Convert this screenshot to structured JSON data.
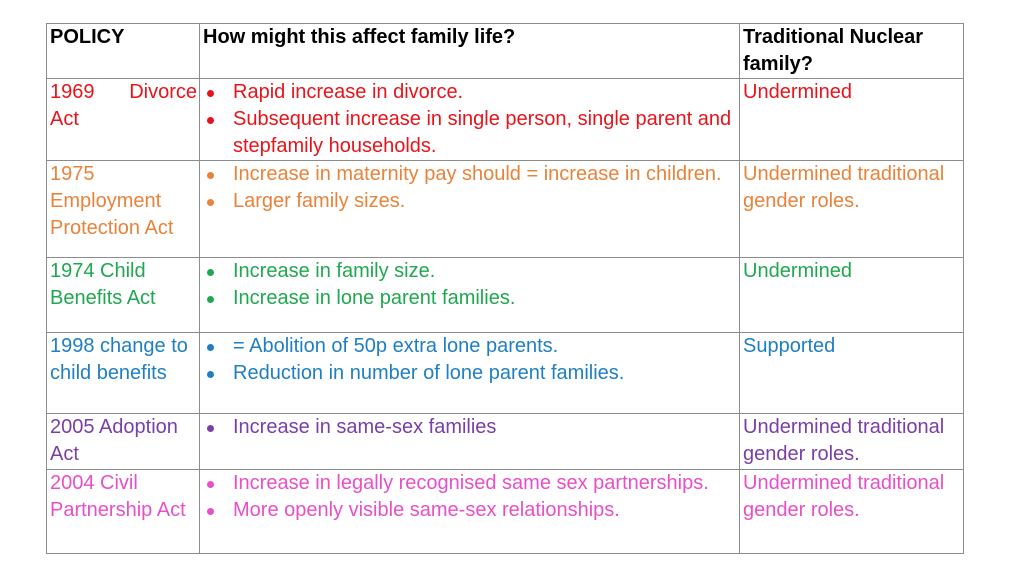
{
  "headers": {
    "policy": "POLICY",
    "effect": "How might this affect family life?",
    "nuclear": "Traditional Nuclear family?"
  },
  "rows": [
    {
      "color": "#e8141b",
      "policy_a": "1969",
      "policy_b": "Divorce",
      "policy_c": "Act",
      "effects": [
        "Rapid increase in divorce.",
        "Subsequent increase in single person, single parent and stepfamily households."
      ],
      "nuclear": "Undermined"
    },
    {
      "color": "#e8833a",
      "policy": "1975 Employment Protection Act",
      "effects": [
        "Increase in maternity pay should = increase in children.",
        "Larger family sizes."
      ],
      "nuclear": "Undermined traditional gender roles."
    },
    {
      "color": "#1fa84f",
      "policy": "1974 Child Benefits Act",
      "effects": [
        "Increase in family size.",
        "Increase in lone parent families."
      ],
      "nuclear": "Undermined"
    },
    {
      "color": "#1f7fc4",
      "policy": "1998 change to child benefits",
      "effects": [
        "= Abolition of 50p extra lone parents.",
        "Reduction in number of lone parent families."
      ],
      "nuclear": "Supported"
    },
    {
      "color": "#7a3fa6",
      "policy": "2005 Adoption Act",
      "effects": [
        "Increase in same-sex families"
      ],
      "nuclear": "Undermined traditional gender roles."
    },
    {
      "color": "#e84fc8",
      "policy": "2004 Civil Partnership Act",
      "effects": [
        "Increase in legally recognised same sex partnerships.",
        "More openly visible same-sex relationships."
      ],
      "nuclear": "Undermined traditional gender roles."
    }
  ]
}
